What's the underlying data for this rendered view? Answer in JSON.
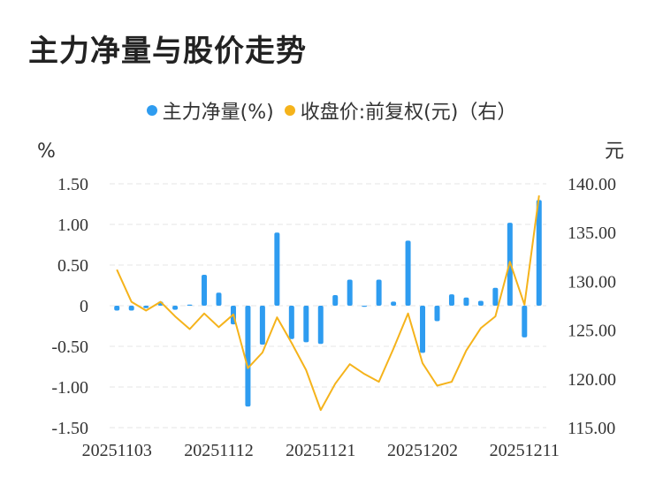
{
  "title": "主力净量与股价走势",
  "legend": {
    "series1": "主力净量(%)",
    "series2": "收盘价:前复权(元)（右）"
  },
  "colors": {
    "bar": "#2e9cf0",
    "line": "#f5b31b",
    "grid": "#e6e6e6"
  },
  "chart_data": {
    "type": "bar",
    "y_unit_left": "%",
    "y_unit_right": "元",
    "ylim_left": [
      -1.5,
      1.5
    ],
    "ylim_right": [
      115,
      140
    ],
    "yticks_left": [
      "1.50",
      "1.00",
      "0.50",
      "0",
      "-0.50",
      "-1.00",
      "-1.50"
    ],
    "yticks_left_values": [
      1.5,
      1.0,
      0.5,
      0,
      -0.5,
      -1.0,
      -1.5
    ],
    "yticks_right": [
      "140.00",
      "135.00",
      "130.00",
      "125.00",
      "120.00",
      "115.00"
    ],
    "yticks_right_values": [
      140,
      135,
      130,
      125,
      120,
      115
    ],
    "x_tick_labels": [
      "20251103",
      "20251112",
      "20251121",
      "20251202",
      "20251211"
    ],
    "x_tick_index": [
      0,
      7,
      14,
      21,
      28
    ],
    "grid": true,
    "legend_position": "top-center",
    "series": [
      {
        "name": "主力净量(%)",
        "type": "bar",
        "axis": "left",
        "values": [
          -0.06,
          -0.06,
          -0.03,
          0.05,
          -0.05,
          0.01,
          0.38,
          0.16,
          -0.23,
          -1.24,
          -0.48,
          0.9,
          -0.41,
          -0.45,
          -0.47,
          0.13,
          0.32,
          -0.01,
          0.32,
          0.05,
          0.8,
          -0.58,
          -0.19,
          0.14,
          0.1,
          0.06,
          0.22,
          1.02,
          -0.39,
          1.3
        ]
      },
      {
        "name": "收盘价:前复权(元)（右）",
        "type": "line",
        "axis": "right",
        "values": [
          131.2,
          127.9,
          127.0,
          127.9,
          126.4,
          125.1,
          126.7,
          125.3,
          126.6,
          121.1,
          122.7,
          126.3,
          123.7,
          120.9,
          116.8,
          119.5,
          121.5,
          120.5,
          119.7,
          123.1,
          126.7,
          121.6,
          119.3,
          119.7,
          122.9,
          125.2,
          126.4,
          132.0,
          127.6,
          138.8
        ]
      }
    ]
  }
}
